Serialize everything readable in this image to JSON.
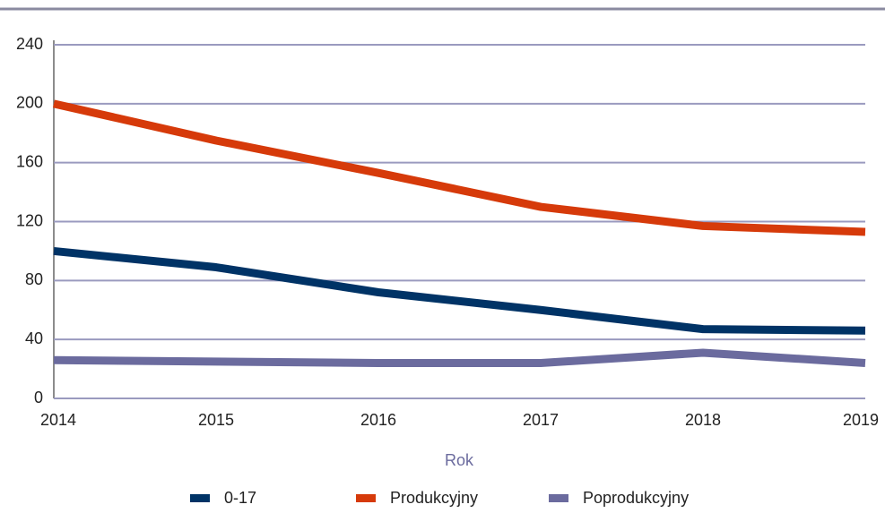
{
  "chart_data": {
    "type": "line",
    "x": [
      2014,
      2015,
      2016,
      2017,
      2018,
      2019
    ],
    "xlim": [
      2014,
      2019
    ],
    "xticks": [
      2014,
      2015,
      2016,
      2017,
      2018,
      2019
    ],
    "ylim": [
      0,
      240
    ],
    "yticks": [
      0,
      40,
      80,
      120,
      160,
      200,
      240
    ],
    "x_label": "Rok",
    "grid": true,
    "legend": "bottom",
    "series": [
      {
        "name": "0-17",
        "color": "#003366",
        "values": [
          100,
          89,
          72,
          60,
          47,
          46
        ]
      },
      {
        "name": "Produkcyjny",
        "color": "#d63a0a",
        "values": [
          200,
          175,
          153,
          130,
          117,
          113
        ]
      },
      {
        "name": "Poprodukcyjny",
        "color": "#6b6b9e",
        "values": [
          26,
          25,
          24,
          24,
          31,
          24
        ]
      }
    ]
  }
}
